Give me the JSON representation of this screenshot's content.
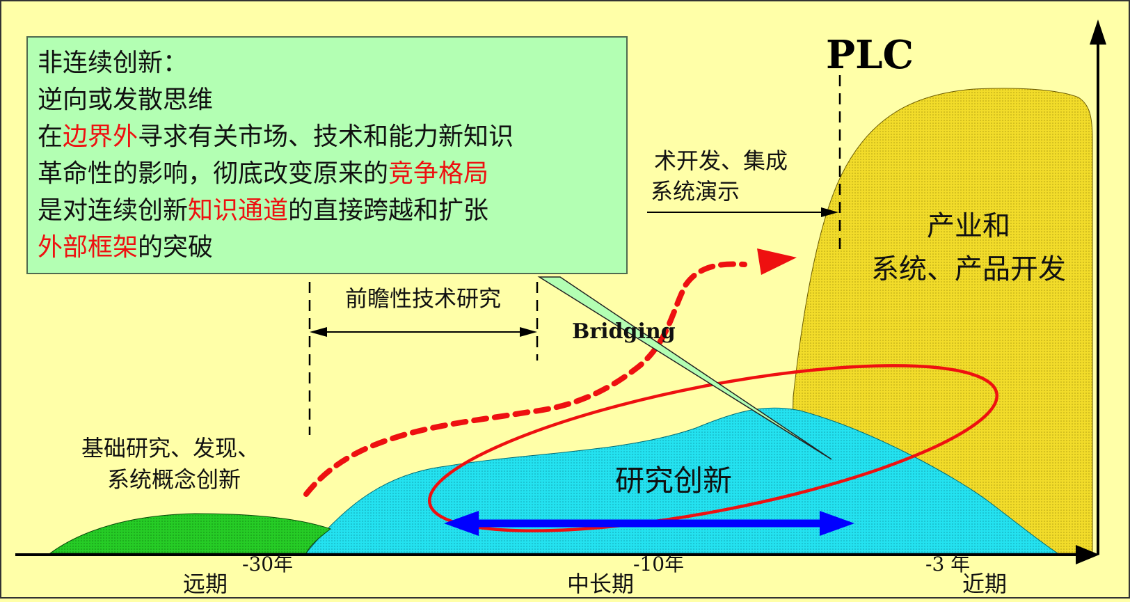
{
  "plc_label": "PLC",
  "regions": {
    "basic_research": [
      "基础研究、发现、",
      "系统概念创新"
    ],
    "prospective_research": "前瞻性技术研究",
    "tech_dev": [
      "术开发、集成",
      "系统演示"
    ],
    "bridging": "Bridging",
    "research_innovation": "研究创新",
    "industry_dev": [
      "产业和",
      "系统、产品开发"
    ]
  },
  "axis": {
    "ticks": [
      "-30年",
      "-10年",
      "-3 年"
    ],
    "periods": [
      "远期",
      "中长期",
      "近期"
    ]
  },
  "callout": {
    "lines": [
      [
        {
          "text": "非连续创新：",
          "color": "black"
        }
      ],
      [
        {
          "text": "逆向或发散思维",
          "color": "black"
        }
      ],
      [
        {
          "text": "在",
          "color": "black"
        },
        {
          "text": "边界外",
          "color": "red"
        },
        {
          "text": "寻求有关市场、技术和能力新知识",
          "color": "black"
        }
      ],
      [
        {
          "text": "革命性的影响，彻底改变原来的",
          "color": "black"
        },
        {
          "text": "竞争格局",
          "color": "red"
        }
      ],
      [
        {
          "text": "是对连续创新",
          "color": "black"
        },
        {
          "text": "知识通道",
          "color": "red"
        },
        {
          "text": "的直接跨越和扩张",
          "color": "black"
        }
      ],
      [
        {
          "text": "外部框架",
          "color": "red"
        },
        {
          "text": "的突破",
          "color": "black"
        }
      ]
    ]
  },
  "colors": {
    "background": "#FFFFA8",
    "green_hill": "#22CC22",
    "cyan_hill": "#22E5F2",
    "yellow_area": "#F5E030",
    "callout_bg": "#B3FFB3",
    "highlight_red": "#EE1010",
    "double_arrow": "#0000FF"
  }
}
